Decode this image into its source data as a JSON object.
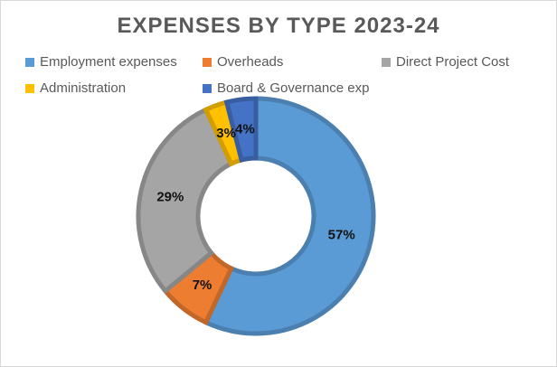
{
  "chart_data": {
    "type": "pie",
    "variant": "doughnut",
    "title": "EXPENSES BY TYPE 2023-24",
    "categories": [
      "Employment expenses",
      "Overheads",
      "Direct Project Cost",
      "Administration",
      "Board & Governance exp"
    ],
    "values": [
      57,
      7,
      29,
      3,
      4
    ],
    "labels": [
      "57%",
      "7%",
      "29%",
      "3%",
      "4%"
    ],
    "colors": [
      "#5b9bd5",
      "#ed7d31",
      "#a5a5a5",
      "#ffc000",
      "#4472c4"
    ],
    "legend_position": "top"
  }
}
